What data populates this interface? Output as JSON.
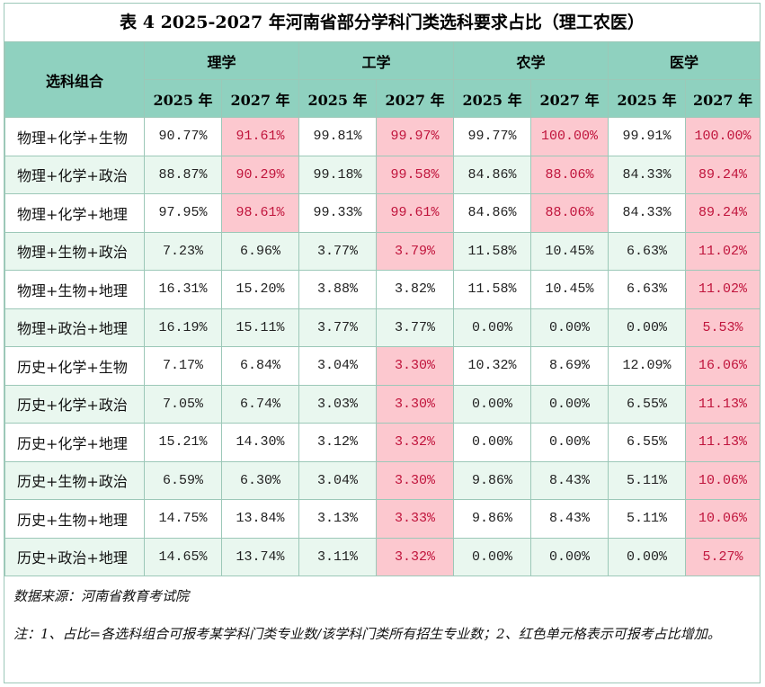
{
  "title": "表 4  2025-2027 年河南省部分学科门类选科要求占比（理工农医）",
  "header": {
    "combo_label": "选科组合",
    "groups": [
      "理学",
      "工学",
      "农学",
      "医学"
    ],
    "years": [
      "2025 年",
      "2027 年",
      "2025 年",
      "2027 年",
      "2025 年",
      "2027 年",
      "2025 年",
      "2027 年"
    ]
  },
  "rows": [
    {
      "combo": "物理+化学+生物",
      "values": [
        "90.77%",
        "91.61%",
        "99.81%",
        "99.97%",
        "99.77%",
        "100.00%",
        "99.91%",
        "100.00%"
      ],
      "increased": [
        false,
        true,
        false,
        true,
        false,
        true,
        false,
        true
      ]
    },
    {
      "combo": "物理+化学+政治",
      "values": [
        "88.87%",
        "90.29%",
        "99.18%",
        "99.58%",
        "84.86%",
        "88.06%",
        "84.33%",
        "89.24%"
      ],
      "increased": [
        false,
        true,
        false,
        true,
        false,
        true,
        false,
        true
      ]
    },
    {
      "combo": "物理+化学+地理",
      "values": [
        "97.95%",
        "98.61%",
        "99.33%",
        "99.61%",
        "84.86%",
        "88.06%",
        "84.33%",
        "89.24%"
      ],
      "increased": [
        false,
        true,
        false,
        true,
        false,
        true,
        false,
        true
      ]
    },
    {
      "combo": "物理+生物+政治",
      "values": [
        "7.23%",
        "6.96%",
        "3.77%",
        "3.79%",
        "11.58%",
        "10.45%",
        "6.63%",
        "11.02%"
      ],
      "increased": [
        false,
        false,
        false,
        true,
        false,
        false,
        false,
        true
      ]
    },
    {
      "combo": "物理+生物+地理",
      "values": [
        "16.31%",
        "15.20%",
        "3.88%",
        "3.82%",
        "11.58%",
        "10.45%",
        "6.63%",
        "11.02%"
      ],
      "increased": [
        false,
        false,
        false,
        false,
        false,
        false,
        false,
        true
      ]
    },
    {
      "combo": "物理+政治+地理",
      "values": [
        "16.19%",
        "15.11%",
        "3.77%",
        "3.77%",
        "0.00%",
        "0.00%",
        "0.00%",
        "5.53%"
      ],
      "increased": [
        false,
        false,
        false,
        false,
        false,
        false,
        false,
        true
      ]
    },
    {
      "combo": "历史+化学+生物",
      "values": [
        "7.17%",
        "6.84%",
        "3.04%",
        "3.30%",
        "10.32%",
        "8.69%",
        "12.09%",
        "16.06%"
      ],
      "increased": [
        false,
        false,
        false,
        true,
        false,
        false,
        false,
        true
      ]
    },
    {
      "combo": "历史+化学+政治",
      "values": [
        "7.05%",
        "6.74%",
        "3.03%",
        "3.30%",
        "0.00%",
        "0.00%",
        "6.55%",
        "11.13%"
      ],
      "increased": [
        false,
        false,
        false,
        true,
        false,
        false,
        false,
        true
      ]
    },
    {
      "combo": "历史+化学+地理",
      "values": [
        "15.21%",
        "14.30%",
        "3.12%",
        "3.32%",
        "0.00%",
        "0.00%",
        "6.55%",
        "11.13%"
      ],
      "increased": [
        false,
        false,
        false,
        true,
        false,
        false,
        false,
        true
      ]
    },
    {
      "combo": "历史+生物+政治",
      "values": [
        "6.59%",
        "6.30%",
        "3.04%",
        "3.30%",
        "9.86%",
        "8.43%",
        "5.11%",
        "10.06%"
      ],
      "increased": [
        false,
        false,
        false,
        true,
        false,
        false,
        false,
        true
      ]
    },
    {
      "combo": "历史+生物+地理",
      "values": [
        "14.75%",
        "13.84%",
        "3.13%",
        "3.33%",
        "9.86%",
        "8.43%",
        "5.11%",
        "10.06%"
      ],
      "increased": [
        false,
        false,
        false,
        true,
        false,
        false,
        false,
        true
      ]
    },
    {
      "combo": "历史+政治+地理",
      "values": [
        "14.65%",
        "13.74%",
        "3.11%",
        "3.32%",
        "0.00%",
        "0.00%",
        "0.00%",
        "5.27%"
      ],
      "increased": [
        false,
        false,
        false,
        true,
        false,
        false,
        false,
        true
      ]
    }
  ],
  "source": "数据来源：河南省教育考试院",
  "note": "注：1、占比=各选科组合可报考某学科门类专业数/该学科门类所有招生专业数；2、红色单元格表示可报考占比增加。",
  "colors": {
    "header_bg": "#8fd1bf",
    "increase_bg": "#fcc8cf",
    "increase_text": "#c0143c",
    "stripe_bg": "#e9f7ef",
    "border": "#9cc8b8"
  }
}
